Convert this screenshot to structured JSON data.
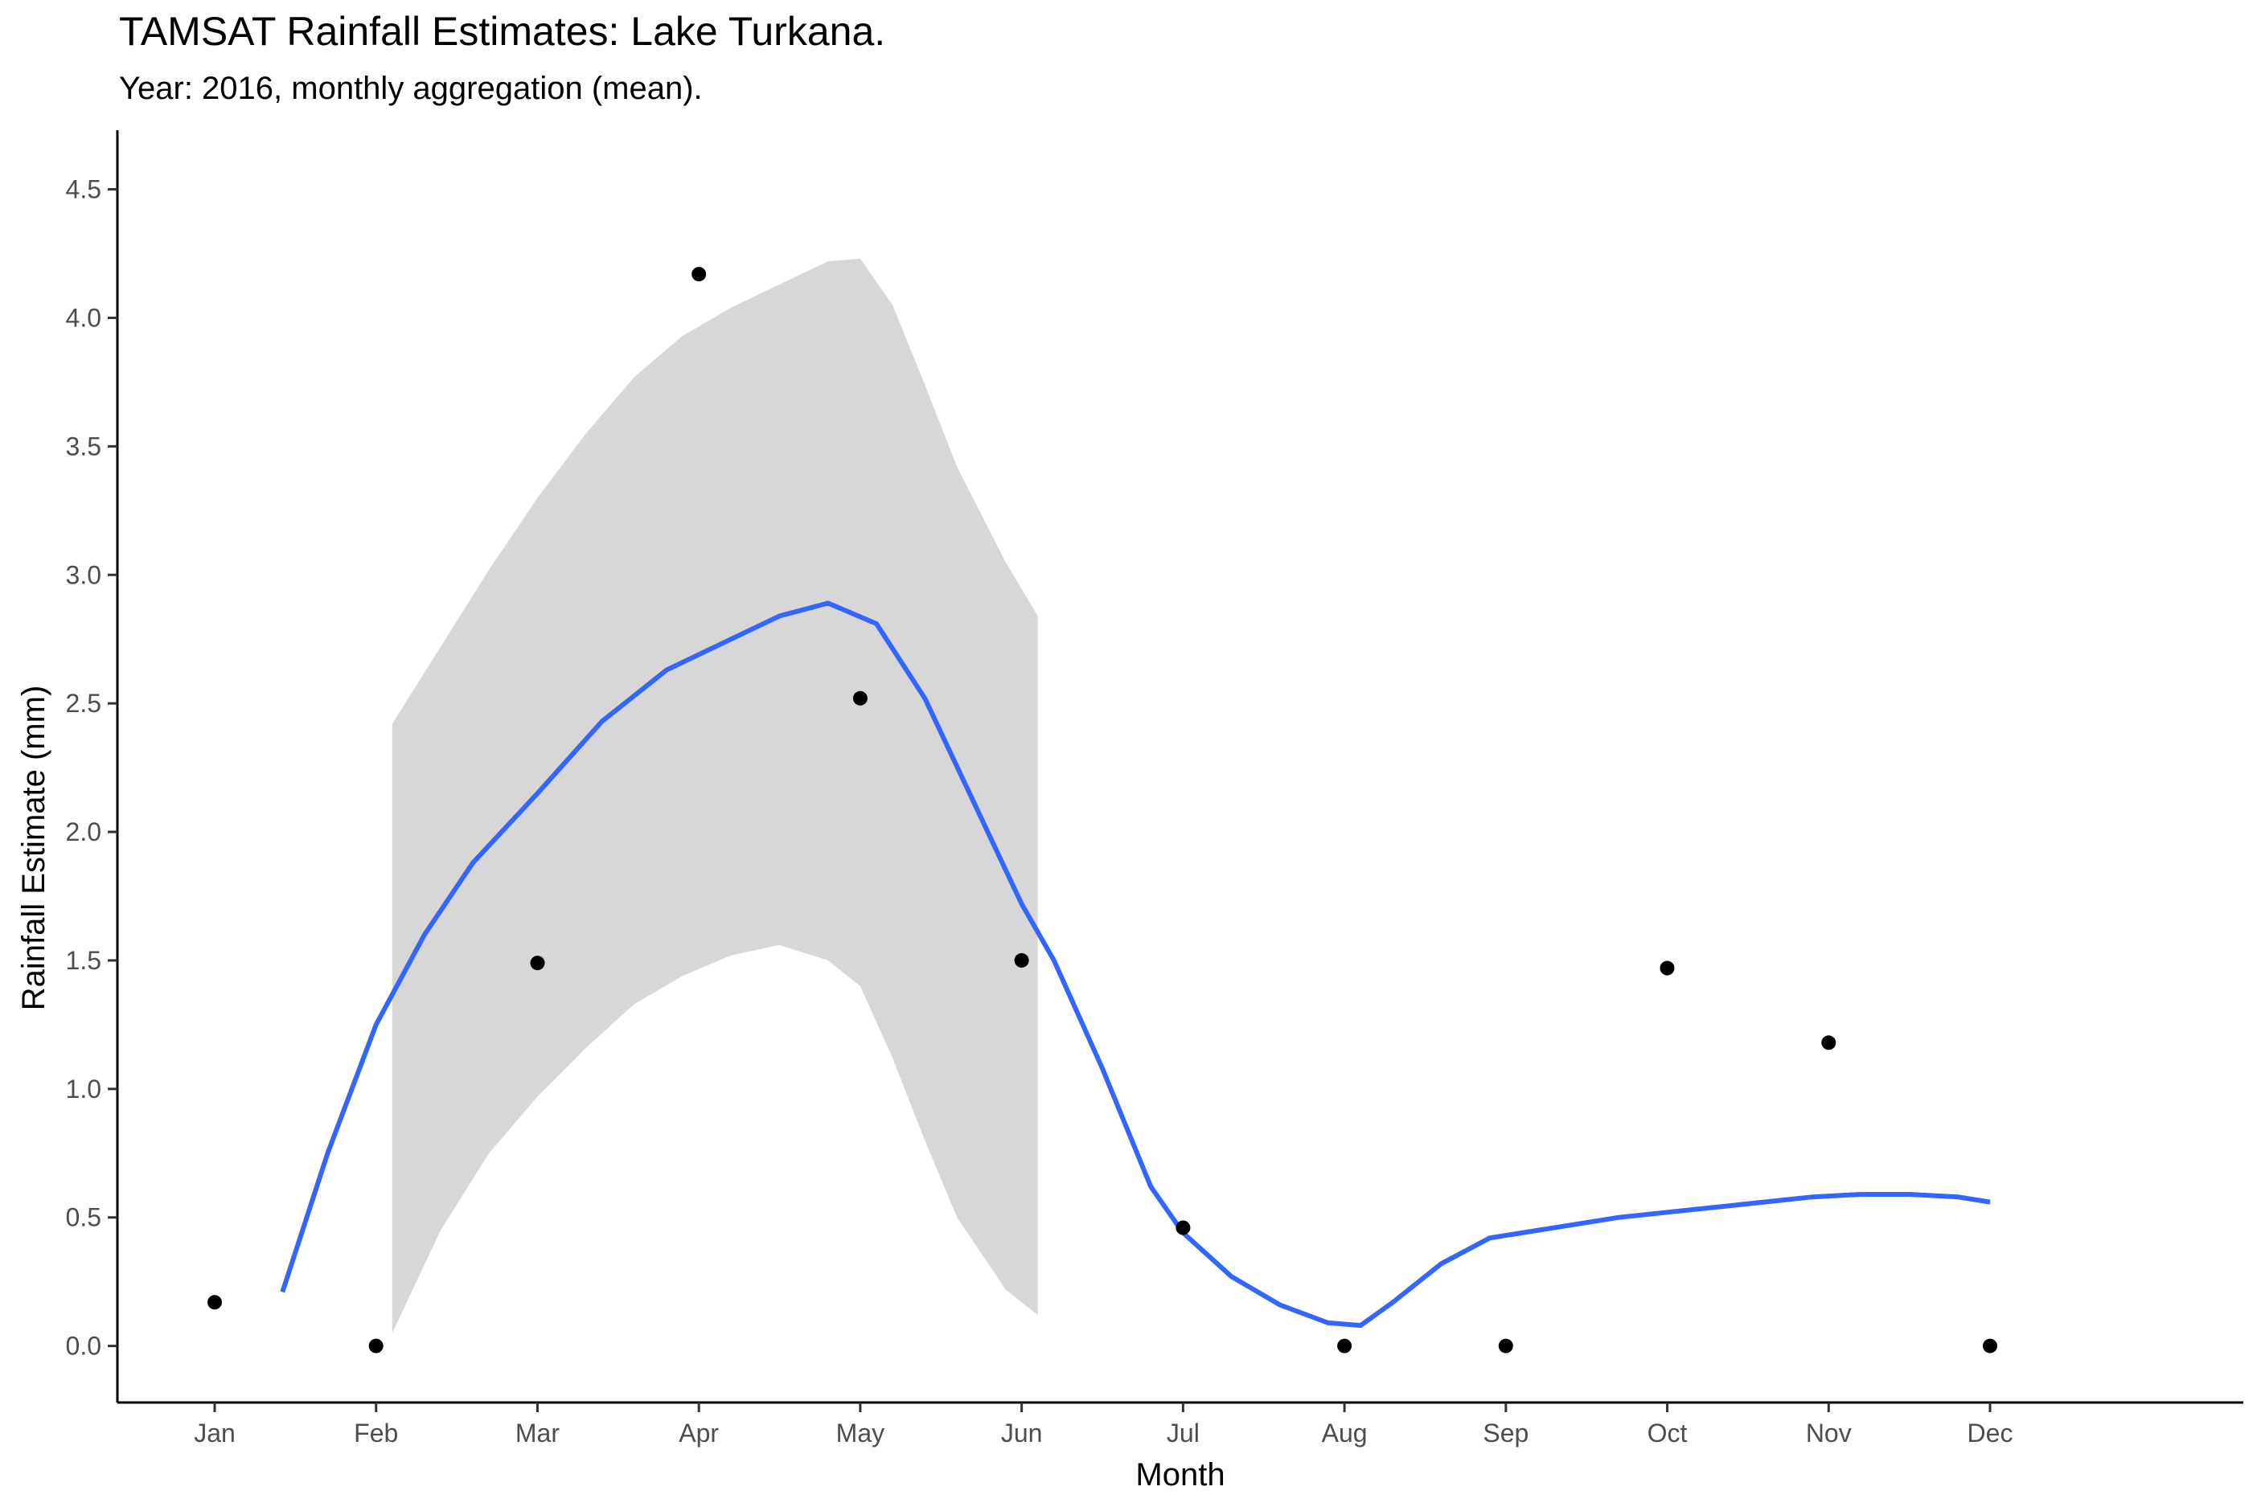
{
  "chart_data": {
    "type": "scatter",
    "title": "TAMSAT Rainfall Estimates: Lake Turkana.",
    "subtitle": "Year: 2016, monthly aggregation (mean).",
    "xlabel": "Month",
    "ylabel": "Rainfall Estimate (mm)",
    "categories": [
      "Jan",
      "Feb",
      "Mar",
      "Apr",
      "May",
      "Jun",
      "Jul",
      "Aug",
      "Sep",
      "Oct",
      "Nov",
      "Dec"
    ],
    "ylim": [
      -0.22,
      4.73
    ],
    "yticks": [
      "0.0",
      "0.5",
      "1.0",
      "1.5",
      "2.0",
      "2.5",
      "3.0",
      "3.5",
      "4.0",
      "4.5"
    ],
    "grid": false,
    "colors": {
      "points": "#000000",
      "smooth": "#3366FF",
      "ribbon": "#D3D3D3"
    },
    "points": {
      "x": [
        1,
        2,
        3,
        4,
        5,
        6,
        7,
        8,
        9,
        10,
        11,
        12
      ],
      "y": [
        0.17,
        0.0,
        1.49,
        4.17,
        2.52,
        1.5,
        0.46,
        0.0,
        0.0,
        1.47,
        1.18,
        0.0
      ]
    },
    "smooth": {
      "x": [
        1.42,
        1.7,
        2.0,
        2.3,
        2.6,
        3.0,
        3.4,
        3.8,
        4.2,
        4.5,
        4.8,
        5.1,
        5.4,
        5.7,
        6.0,
        6.2,
        6.5,
        6.8,
        7.0,
        7.3,
        7.6,
        7.9,
        8.1,
        8.3,
        8.6,
        8.9,
        9.1,
        9.4,
        9.7,
        10.0,
        10.3,
        10.6,
        10.9,
        11.2,
        11.5,
        11.8,
        12.0
      ],
      "y": [
        0.21,
        0.75,
        1.25,
        1.6,
        1.88,
        2.15,
        2.43,
        2.63,
        2.75,
        2.84,
        2.89,
        2.81,
        2.52,
        2.12,
        1.72,
        1.5,
        1.08,
        0.62,
        0.44,
        0.27,
        0.16,
        0.09,
        0.08,
        0.17,
        0.32,
        0.42,
        0.44,
        0.47,
        0.5,
        0.52,
        0.54,
        0.56,
        0.58,
        0.59,
        0.59,
        0.58,
        0.56
      ]
    },
    "ribbon": {
      "x": [
        2.1,
        2.4,
        2.7,
        3.0,
        3.3,
        3.6,
        3.9,
        4.2,
        4.5,
        4.8,
        5.0,
        5.2,
        5.4,
        5.6,
        5.9,
        6.1
      ],
      "upper": [
        2.42,
        2.72,
        3.02,
        3.3,
        3.55,
        3.77,
        3.93,
        4.04,
        4.13,
        4.22,
        4.23,
        4.05,
        3.74,
        3.42,
        3.05,
        2.84
      ],
      "lower": [
        0.05,
        0.45,
        0.75,
        0.97,
        1.16,
        1.33,
        1.44,
        1.52,
        1.56,
        1.5,
        1.4,
        1.12,
        0.8,
        0.5,
        0.22,
        0.12
      ]
    }
  }
}
